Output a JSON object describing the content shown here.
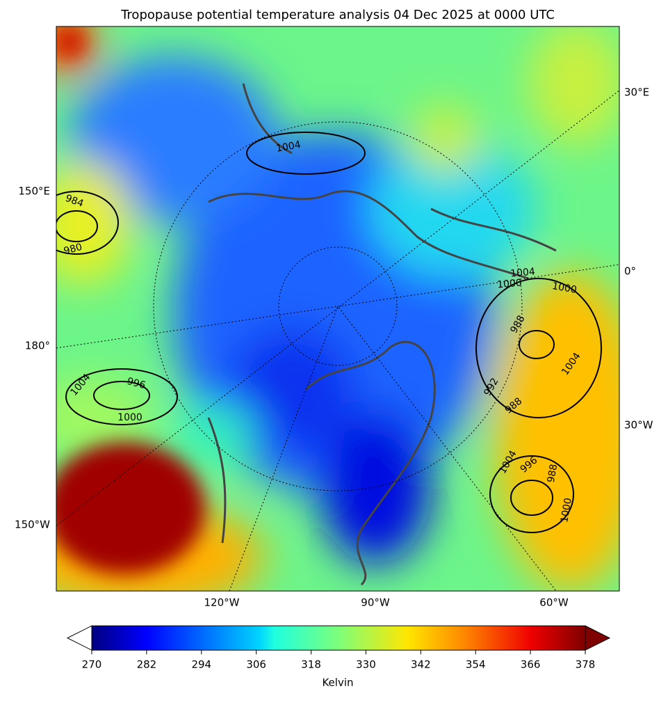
{
  "title": "Tropopause potential temperature analysis 04 Dec 2025 at 0000 UTC",
  "map": {
    "edge_labels": [
      "30°E",
      "0°",
      "30°W",
      "150°E",
      "180°",
      "150°W"
    ],
    "bottom_labels": [
      "120°W",
      "90°W",
      "60°W"
    ],
    "contour_labels": [
      1004,
      984,
      980,
      1004,
      996,
      1000,
      1004,
      1000,
      1000,
      988,
      992,
      988,
      1004,
      996,
      988,
      1000,
      1004
    ]
  },
  "colorbar": {
    "label": "Kelvin",
    "lim": [
      270,
      378
    ],
    "ticks": [
      270,
      282,
      294,
      306,
      318,
      330,
      342,
      354,
      366,
      378
    ]
  }
}
